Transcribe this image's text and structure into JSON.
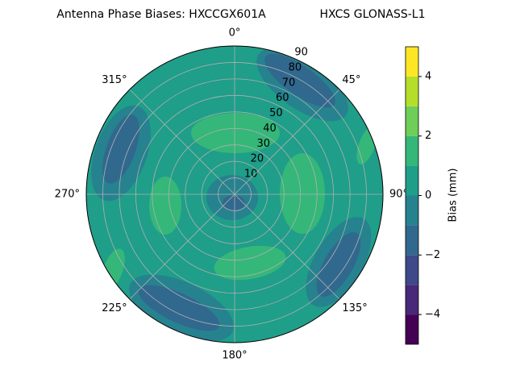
{
  "chart_data": {
    "type": "polar_contour",
    "title": "Antenna Phase Biases: HXCCGX601A",
    "subtitle": "HXCS GLONASS-L1",
    "thetaticks": [
      {
        "value": 0,
        "label": "0°"
      },
      {
        "value": 45,
        "label": "45°"
      },
      {
        "value": 90,
        "label": "90°"
      },
      {
        "value": 135,
        "label": "135°"
      },
      {
        "value": 180,
        "label": "180°"
      },
      {
        "value": 225,
        "label": "225°"
      },
      {
        "value": 270,
        "label": "270°"
      },
      {
        "value": 315,
        "label": "315°"
      }
    ],
    "rlim": [
      0,
      90
    ],
    "rticks": [
      10,
      20,
      30,
      40,
      50,
      60,
      70,
      80,
      90
    ],
    "grid": true,
    "colorbar": {
      "label": "Bias (mm)",
      "levels": [
        -5,
        -4,
        -3,
        -2,
        -1,
        0,
        1,
        2,
        3,
        4,
        5
      ],
      "colors": [
        "#440154",
        "#482878",
        "#3e4989",
        "#31688e",
        "#26828e",
        "#1f9e89",
        "#35b779",
        "#6ece58",
        "#b5de2b",
        "#fde725"
      ],
      "ticks": [
        {
          "value": -4,
          "label": "−4"
        },
        {
          "value": -2,
          "label": "−2"
        },
        0,
        2,
        4
      ]
    }
  }
}
